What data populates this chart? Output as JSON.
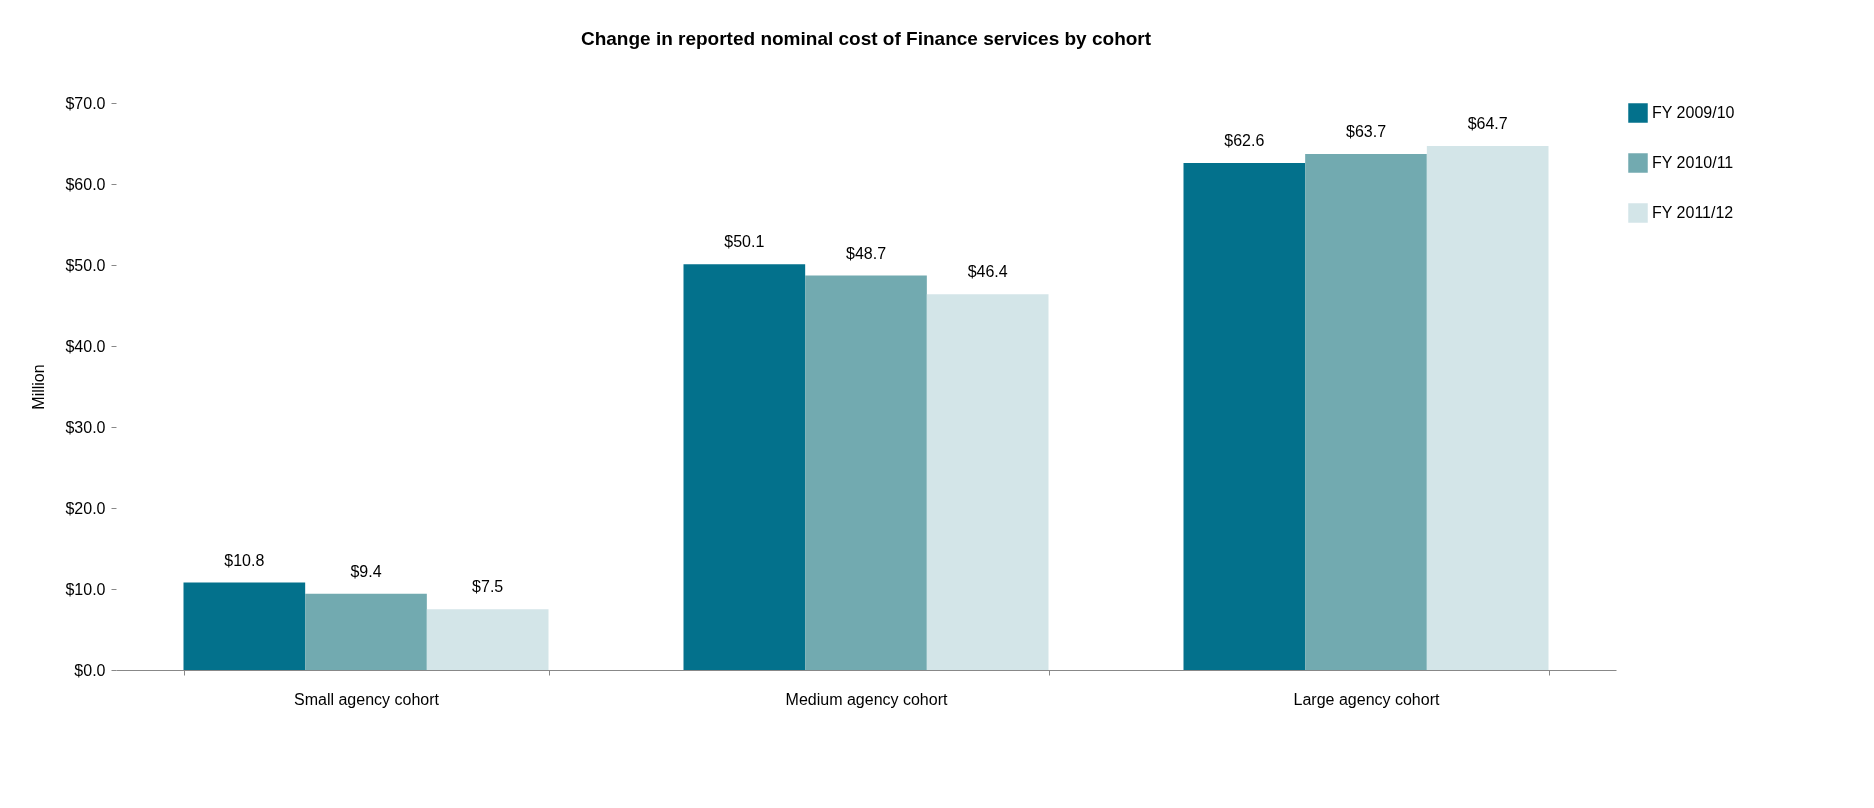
{
  "chart_data": {
    "type": "bar",
    "title": "Change in reported nominal cost of Finance services by cohort",
    "ylabel": "Million",
    "categories": [
      "Small agency cohort",
      "Medium agency cohort",
      "Large agency cohort"
    ],
    "series": [
      {
        "name": "FY 2009/10",
        "color": "#03718c",
        "values": [
          10.8,
          50.1,
          62.6
        ],
        "value_labels": [
          "$10.8",
          "$50.1",
          "$62.6"
        ]
      },
      {
        "name": "FY 2010/11",
        "color": "#72aab0",
        "values": [
          9.4,
          48.7,
          63.7
        ],
        "value_labels": [
          "$9.4",
          "$48.7",
          "$63.7"
        ]
      },
      {
        "name": "FY 2011/12",
        "color": "#d3e5e8",
        "values": [
          7.5,
          46.4,
          64.7
        ],
        "value_labels": [
          "$7.5",
          "$46.4",
          "$64.7"
        ]
      }
    ],
    "ylim": [
      0,
      70
    ],
    "yticks": [
      {
        "value": 0,
        "label": "$0.0"
      },
      {
        "value": 10,
        "label": "$10.0"
      },
      {
        "value": 20,
        "label": "$20.0"
      },
      {
        "value": 30,
        "label": "$30.0"
      },
      {
        "value": 40,
        "label": "$40.0"
      },
      {
        "value": 50,
        "label": "$50.0"
      },
      {
        "value": 60,
        "label": "$60.0"
      },
      {
        "value": 70,
        "label": "$70.0"
      }
    ],
    "grid": false,
    "legend": "right"
  }
}
